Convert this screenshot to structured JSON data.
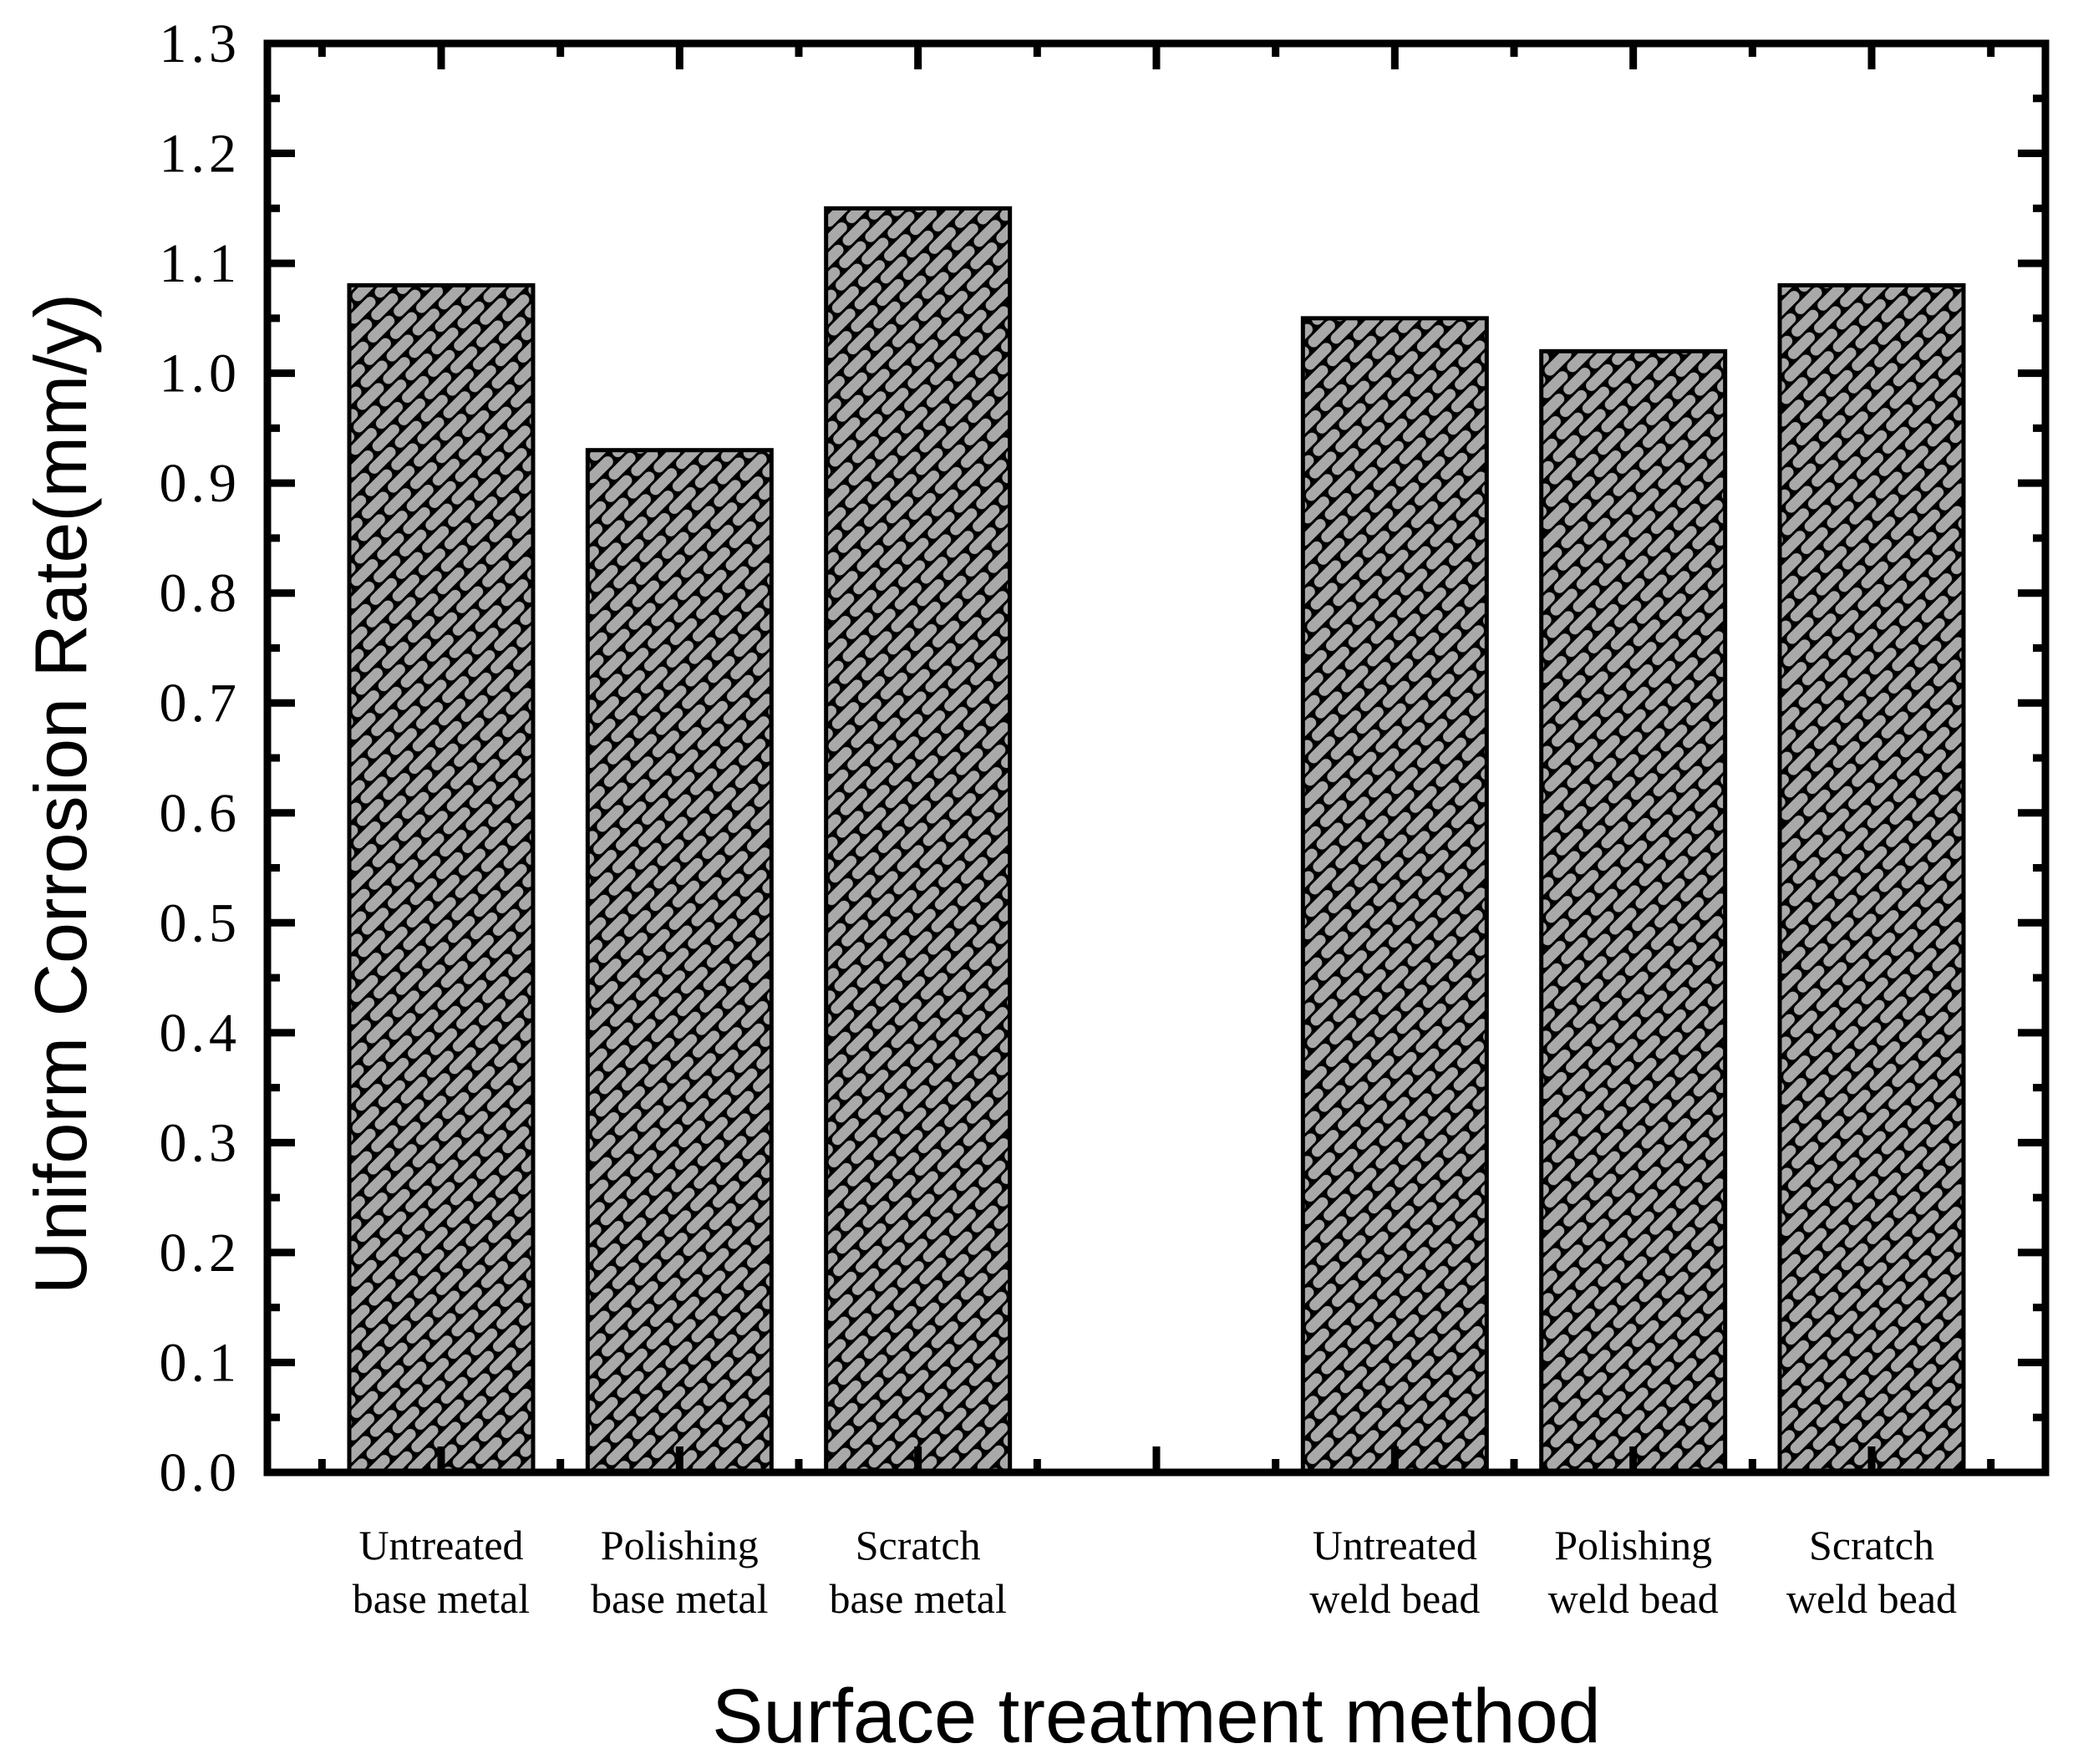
{
  "chart_data": {
    "type": "bar",
    "title": "",
    "xlabel": "Surface treatment method",
    "ylabel": "Uniform Corrosion Rate(mm/y)",
    "categories": [
      {
        "line1": "Untreated",
        "line2": "base metal"
      },
      {
        "line1": "Polishing",
        "line2": "base metal"
      },
      {
        "line1": "Scratch",
        "line2": "base metal"
      },
      {
        "line1": "Untreated",
        "line2": "weld bead"
      },
      {
        "line1": "Polishing",
        "line2": "weld bead"
      },
      {
        "line1": "Scratch",
        "line2": "weld bead"
      }
    ],
    "values": [
      1.08,
      0.93,
      1.15,
      1.05,
      1.02,
      1.08
    ],
    "ylim": [
      0.0,
      1.3
    ],
    "ytick_step": 0.1,
    "ytick_minor_step": 0.05,
    "ytick_labels": [
      "0.0",
      "0.1",
      "0.2",
      "0.3",
      "0.4",
      "0.5",
      "0.6",
      "0.7",
      "0.8",
      "0.9",
      "1.0",
      "1.1",
      "1.2",
      "1.3"
    ],
    "layout_hints": {
      "num_slots": 7,
      "bar_slots": [
        0,
        1,
        2,
        4,
        5,
        6
      ],
      "grid": false,
      "legend": "none",
      "ticks": "inward-mirrored-all-sides",
      "bar_hatch": "diagonal-brick"
    },
    "colors": {
      "bar_fill": "#a9a9a9",
      "hatch_lines": "#000000",
      "axis": "#000000",
      "background": "#ffffff"
    }
  }
}
